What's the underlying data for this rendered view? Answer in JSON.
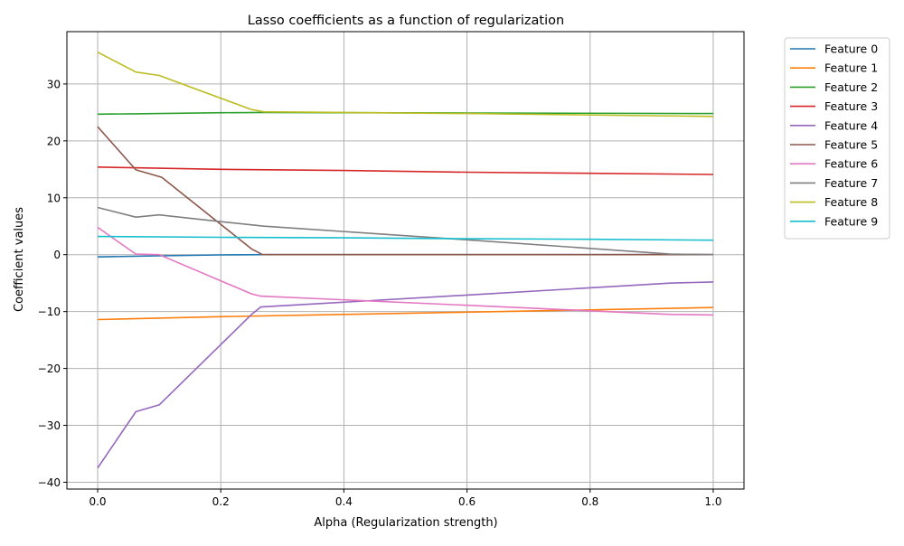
{
  "chart_data": {
    "type": "line",
    "title": "Lasso coefficients as a function of regularization",
    "xlabel": "Alpha (Regularization strength)",
    "ylabel": "Coefficient values",
    "xlim": [
      -0.05,
      1.05
    ],
    "ylim": [
      -41.2,
      39.2
    ],
    "xticks": [
      0.0,
      0.2,
      0.4,
      0.6,
      0.8,
      1.0
    ],
    "xtick_labels": [
      "0.0",
      "0.2",
      "0.4",
      "0.6",
      "0.8",
      "1.0"
    ],
    "yticks": [
      -40,
      -30,
      -20,
      -10,
      0,
      10,
      20,
      30
    ],
    "ytick_labels": [
      "−40",
      "−30",
      "−20",
      "−10",
      "0",
      "10",
      "20",
      "30"
    ],
    "grid": true,
    "legend_position": "outside-right-top",
    "series": [
      {
        "name": "Feature 0",
        "color": "#1f77b4",
        "x": [
          0.0,
          0.1,
          0.2,
          0.27,
          0.6,
          1.0
        ],
        "y": [
          -0.4,
          -0.2,
          -0.05,
          0.0,
          0.0,
          0.0
        ]
      },
      {
        "name": "Feature 1",
        "color": "#ff7f0e",
        "x": [
          0.0,
          0.2,
          0.4,
          0.6,
          0.8,
          1.0
        ],
        "y": [
          -11.4,
          -10.9,
          -10.5,
          -10.1,
          -9.7,
          -9.3
        ]
      },
      {
        "name": "Feature 2",
        "color": "#2ca02c",
        "x": [
          0.0,
          0.06,
          0.2,
          0.27,
          0.6,
          1.0
        ],
        "y": [
          24.7,
          24.75,
          24.95,
          25.0,
          24.9,
          24.8
        ]
      },
      {
        "name": "Feature 3",
        "color": "#d62728",
        "x": [
          0.0,
          0.2,
          0.4,
          0.6,
          0.8,
          1.0
        ],
        "y": [
          15.4,
          15.0,
          14.8,
          14.5,
          14.3,
          14.1
        ]
      },
      {
        "name": "Feature 4",
        "color": "#9467bd",
        "x": [
          0.0,
          0.062,
          0.1,
          0.25,
          0.265,
          0.6,
          0.93,
          1.0
        ],
        "y": [
          -37.5,
          -27.6,
          -26.4,
          -10.5,
          -9.2,
          -7.1,
          -5.0,
          -4.8
        ]
      },
      {
        "name": "Feature 5",
        "color": "#8c564b",
        "x": [
          0.0,
          0.062,
          0.104,
          0.25,
          0.268,
          0.6,
          1.0
        ],
        "y": [
          22.5,
          14.9,
          13.6,
          1.0,
          0.0,
          0.0,
          0.0
        ]
      },
      {
        "name": "Feature 6",
        "color": "#e377c2",
        "x": [
          0.0,
          0.062,
          0.1,
          0.25,
          0.265,
          0.6,
          0.93,
          1.0
        ],
        "y": [
          4.8,
          0.1,
          0.0,
          -6.9,
          -7.3,
          -8.9,
          -10.5,
          -10.6
        ]
      },
      {
        "name": "Feature 7",
        "color": "#7f7f7f",
        "x": [
          0.0,
          0.062,
          0.1,
          0.2,
          0.27,
          0.6,
          0.8,
          0.93,
          1.0
        ],
        "y": [
          8.3,
          6.6,
          7.0,
          5.8,
          5.0,
          2.6,
          1.1,
          0.1,
          0.0
        ]
      },
      {
        "name": "Feature 8",
        "color": "#bcbd22",
        "x": [
          0.0,
          0.062,
          0.1,
          0.25,
          0.27,
          0.6,
          1.0
        ],
        "y": [
          35.6,
          32.1,
          31.5,
          25.5,
          25.1,
          24.8,
          24.3
        ]
      },
      {
        "name": "Feature 9",
        "color": "#17becf",
        "x": [
          0.0,
          0.2,
          0.4,
          0.6,
          0.8,
          1.0
        ],
        "y": [
          3.2,
          3.05,
          2.95,
          2.8,
          2.7,
          2.55
        ]
      }
    ]
  }
}
